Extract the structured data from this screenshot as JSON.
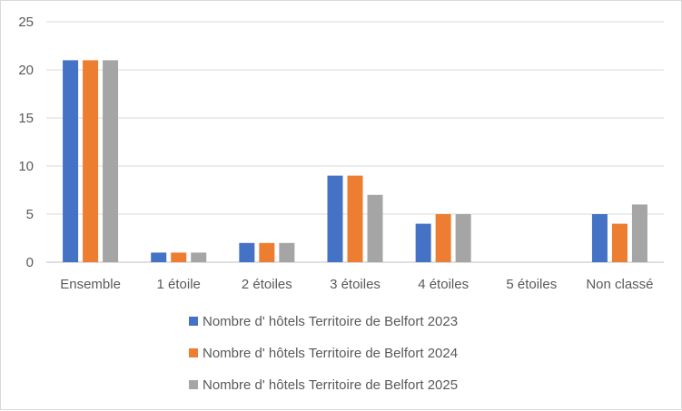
{
  "chart_data": {
    "type": "bar",
    "title": "",
    "xlabel": "",
    "ylabel": "",
    "categories": [
      "Ensemble",
      "1 étoile",
      "2 étoiles",
      "3 étoiles",
      "4 étoiles",
      "5 étoiles",
      "Non classé"
    ],
    "series": [
      {
        "name": "Nombre d' hôtels Territoire de Belfort 2023",
        "color": "#4472c4",
        "values": [
          21,
          1,
          2,
          9,
          4,
          0,
          5
        ]
      },
      {
        "name": "Nombre d' hôtels Territoire de Belfort 2024",
        "color": "#ed7d31",
        "values": [
          21,
          1,
          2,
          9,
          5,
          0,
          4
        ]
      },
      {
        "name": "Nombre d' hôtels Territoire de Belfort 2025",
        "color": "#a5a5a5",
        "values": [
          21,
          1,
          2,
          7,
          5,
          0,
          6
        ]
      }
    ],
    "ylim": [
      0,
      25
    ],
    "yticks": [
      0,
      5,
      10,
      15,
      20,
      25
    ],
    "grid": true,
    "legend": "bottom"
  }
}
